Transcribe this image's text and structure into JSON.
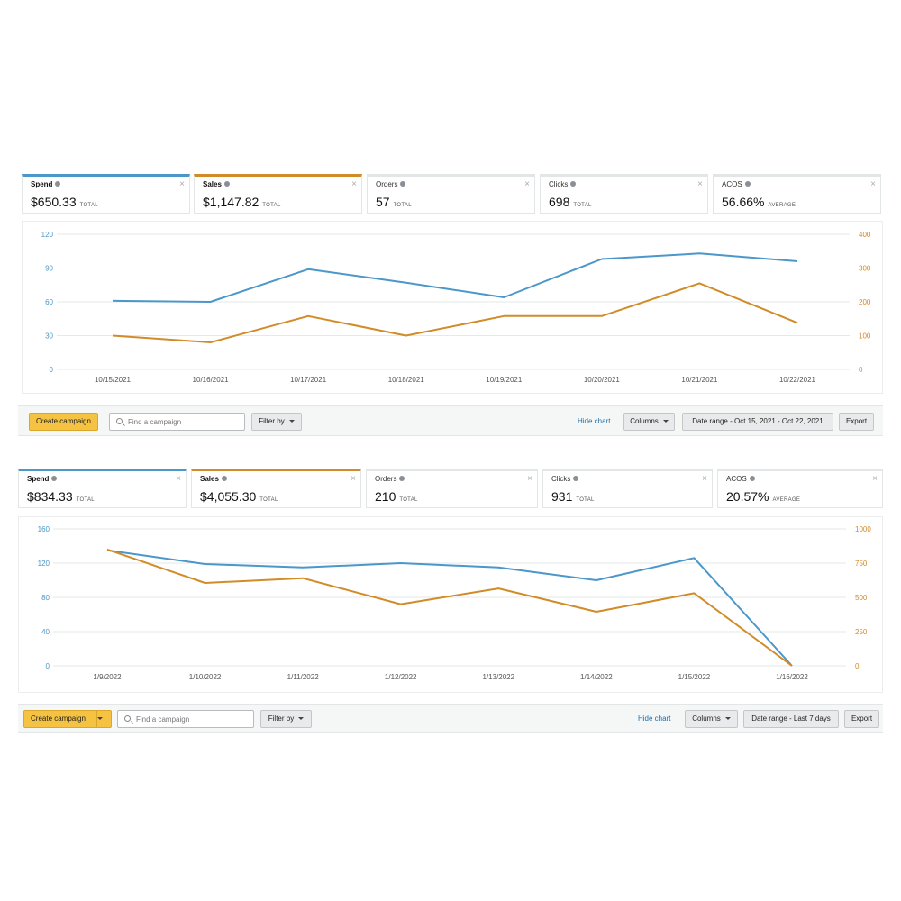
{
  "colors": {
    "spend": "#4b97c9",
    "sales": "#d18b28",
    "grid": "#e6e9ea"
  },
  "panels": [
    {
      "metrics": [
        {
          "label": "Spend",
          "value": "$650.33",
          "sub": "TOTAL"
        },
        {
          "label": "Sales",
          "value": "$1,147.82",
          "sub": "TOTAL"
        },
        {
          "label": "Orders",
          "value": "57",
          "sub": "TOTAL"
        },
        {
          "label": "Clicks",
          "value": "698",
          "sub": "TOTAL"
        },
        {
          "label": "ACOS",
          "value": "56.66%",
          "sub": "AVERAGE"
        }
      ],
      "toolbar": {
        "create_label": "Create campaign",
        "search_placeholder": "Find a campaign",
        "filter_label": "Filter by",
        "hide_chart_label": "Hide chart",
        "columns_label": "Columns",
        "date_range_label": "Date range - Oct 15, 2021 - Oct 22, 2021",
        "export_label": "Export"
      }
    },
    {
      "metrics": [
        {
          "label": "Spend",
          "value": "$834.33",
          "sub": "TOTAL"
        },
        {
          "label": "Sales",
          "value": "$4,055.30",
          "sub": "TOTAL"
        },
        {
          "label": "Orders",
          "value": "210",
          "sub": "TOTAL"
        },
        {
          "label": "Clicks",
          "value": "931",
          "sub": "TOTAL"
        },
        {
          "label": "ACOS",
          "value": "20.57%",
          "sub": "AVERAGE"
        }
      ],
      "toolbar": {
        "create_label": "Create campaign",
        "search_placeholder": "Find a campaign",
        "filter_label": "Filter by",
        "hide_chart_label": "Hide chart",
        "columns_label": "Columns",
        "date_range_label": "Date range - Last 7 days",
        "export_label": "Export"
      }
    }
  ],
  "chart_data": [
    {
      "type": "line",
      "categories": [
        "10/15/2021",
        "10/16/2021",
        "10/17/2021",
        "10/18/2021",
        "10/19/2021",
        "10/20/2021",
        "10/21/2021",
        "10/22/2021"
      ],
      "y_left": {
        "min": 0,
        "max": 120,
        "ticks": [
          0,
          30,
          60,
          90,
          120
        ]
      },
      "y_right": {
        "min": 0,
        "max": 400,
        "ticks": [
          0,
          100,
          200,
          300,
          400
        ]
      },
      "series": [
        {
          "axis": "left",
          "color": "#4b97c9",
          "values": [
            61,
            60,
            89,
            77,
            64,
            98,
            103,
            96
          ]
        },
        {
          "axis": "right",
          "color": "#d18b28",
          "values": [
            100,
            80,
            158,
            100,
            158,
            158,
            255,
            138
          ]
        }
      ],
      "grid": true
    },
    {
      "type": "line",
      "categories": [
        "1/9/2022",
        "1/10/2022",
        "1/11/2022",
        "1/12/2022",
        "1/13/2022",
        "1/14/2022",
        "1/15/2022",
        "1/16/2022"
      ],
      "y_left": {
        "min": 0,
        "max": 160,
        "ticks": [
          0,
          40,
          80,
          120,
          160
        ]
      },
      "y_right": {
        "min": 0,
        "max": 1000,
        "ticks": [
          0,
          250,
          500,
          750,
          1000
        ]
      },
      "series": [
        {
          "axis": "left",
          "color": "#4b97c9",
          "values": [
            135,
            119,
            115,
            120,
            115,
            100,
            126,
            0
          ]
        },
        {
          "axis": "right",
          "color": "#d18b28",
          "values": [
            850,
            605,
            640,
            450,
            565,
            395,
            530,
            0
          ]
        }
      ],
      "grid": true
    }
  ]
}
